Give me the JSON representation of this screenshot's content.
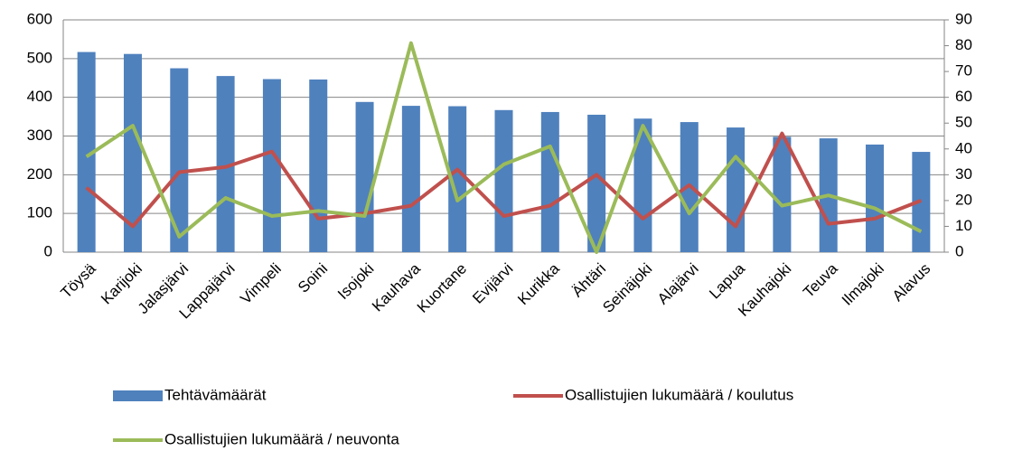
{
  "chart_data": {
    "type": "bar",
    "categories": [
      "Töysä",
      "Karijoki",
      "Jalasjärvi",
      "Lappajärvi",
      "Vimpeli",
      "Soini",
      "Isojoki",
      "Kauhava",
      "Kuortane",
      "Evijärvi",
      "Kurikka",
      "Ähtäri",
      "Seinäjoki",
      "Alajärvi",
      "Lapua",
      "Kauhajoki",
      "Teuva",
      "Ilmajoki",
      "Alavus"
    ],
    "series": [
      {
        "name": "Tehtävämäärät",
        "color": "#4f81bd",
        "type": "bar",
        "values": [
          517,
          512,
          475,
          455,
          447,
          446,
          388,
          378,
          377,
          367,
          362,
          355,
          345,
          336,
          322,
          298,
          294,
          278,
          259
        ]
      },
      {
        "name": "Osallistujien lukumäärä / koulutus",
        "color": "#c0504d",
        "type": "line",
        "axis": "y2",
        "values": [
          25,
          10,
          31,
          33,
          39,
          13,
          15,
          18,
          32,
          14,
          18,
          30,
          13,
          26,
          10,
          46,
          11,
          13,
          20
        ]
      },
      {
        "name": "Osallistujien lukumäärä / neuvonta",
        "color": "#9bbb59",
        "type": "line",
        "axis": "y2",
        "values": [
          37,
          49,
          6,
          21,
          14,
          16,
          14,
          81,
          20,
          34,
          41,
          0,
          49,
          15,
          37,
          18,
          22,
          17,
          8
        ]
      }
    ],
    "ylim": [
      0,
      600
    ],
    "yticks": [
      0,
      100,
      200,
      300,
      400,
      500,
      600
    ],
    "y2lim": [
      0,
      90
    ],
    "y2ticks": [
      0,
      10,
      20,
      30,
      40,
      50,
      60,
      70,
      80,
      90
    ],
    "grid": true
  }
}
